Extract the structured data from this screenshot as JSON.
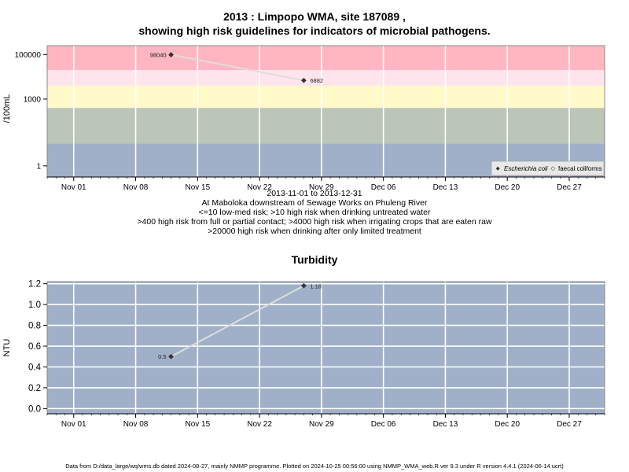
{
  "colors": {
    "band_red": "#FFB6C1",
    "band_pink": "#FFE4EE",
    "band_yellow": "#FFFAC8",
    "band_green": "#BCC6B8",
    "band_blue": "#A0B0C8",
    "turb_bg": "#A0B0C8",
    "line": "#DDDDDD",
    "marker": "#333333"
  },
  "header": {
    "title_line1": "2013 : Limpopo WMA, site 187089 ,",
    "title_line2": "showing high risk guidelines for indicators of microbial pathogens."
  },
  "subtitle": {
    "date_range": "2013-11-01 to 2013-12-31",
    "site_desc": "At Maboloka downstream of Sewage Works on Phuleng River",
    "risk_line1": "<=10 low-med risk; >10 high risk when drinking untreated water",
    "risk_line2": ">400 high risk from full or partial contact; >4000 high risk when irrigating crops that are eaten raw",
    "risk_line3": ">20000 high risk when drinking after only limited treatment"
  },
  "turbidity_title": "Turbidity",
  "footer": "Data from D:/data_large/wq/wms.db dated 2024-08-27, mainly NMMP programme. Plotted on 2024-10-25 00:56:00 using NMMP_WMA_web.R ver 9.3 under R version 4.4.1 (2024-06-14 ucrt)",
  "chart_data": [
    {
      "type": "line",
      "ylabel": "/100mL",
      "y_scale": "log",
      "y_ticks": [
        1,
        1000,
        100000
      ],
      "y_tick_labels": [
        "1",
        "1000",
        "100000"
      ],
      "x_range": [
        "2013-10-29",
        "2013-12-31"
      ],
      "x_tick_labels": [
        "Nov 01",
        "Nov 08",
        "Nov 15",
        "Nov 22",
        "Nov 29",
        "Dec 06",
        "Dec 13",
        "Dec 20",
        "Dec 27"
      ],
      "x_tick_dates": [
        "2013-11-01",
        "2013-11-08",
        "2013-11-15",
        "2013-11-22",
        "2013-11-29",
        "2013-12-06",
        "2013-12-13",
        "2013-12-20",
        "2013-12-27"
      ],
      "risk_bands": [
        20000,
        4000,
        400,
        10
      ],
      "series": [
        {
          "name": "Escherichia coli",
          "x": [
            "2013-11-12",
            "2013-11-27"
          ],
          "y": [
            98040,
            6882
          ],
          "labels": [
            "98040",
            "6882"
          ]
        }
      ],
      "legend": {
        "position": "bottom-right",
        "entries": [
          "Escherichia coli",
          "faecal coliforms"
        ]
      },
      "grid": true
    },
    {
      "type": "line",
      "ylabel": "NTU",
      "y_scale": "linear",
      "ylim": [
        -0.05,
        1.22
      ],
      "y_ticks": [
        0.0,
        0.2,
        0.4,
        0.6,
        0.8,
        1.0,
        1.2
      ],
      "y_tick_labels": [
        "0.0",
        "0.2",
        "0.4",
        "0.6",
        "0.8",
        "1.0",
        "1.2"
      ],
      "x_range": [
        "2013-10-29",
        "2013-12-31"
      ],
      "x_tick_labels": [
        "Nov 01",
        "Nov 08",
        "Nov 15",
        "Nov 22",
        "Nov 29",
        "Dec 06",
        "Dec 13",
        "Dec 20",
        "Dec 27"
      ],
      "x_tick_dates": [
        "2013-11-01",
        "2013-11-08",
        "2013-11-15",
        "2013-11-22",
        "2013-11-29",
        "2013-12-06",
        "2013-12-13",
        "2013-12-20",
        "2013-12-27"
      ],
      "series": [
        {
          "name": "",
          "x": [
            "2013-11-12",
            "2013-11-27"
          ],
          "y": [
            0.5,
            1.18
          ],
          "labels": [
            "0.5",
            "1.18"
          ]
        }
      ],
      "grid": true
    }
  ]
}
